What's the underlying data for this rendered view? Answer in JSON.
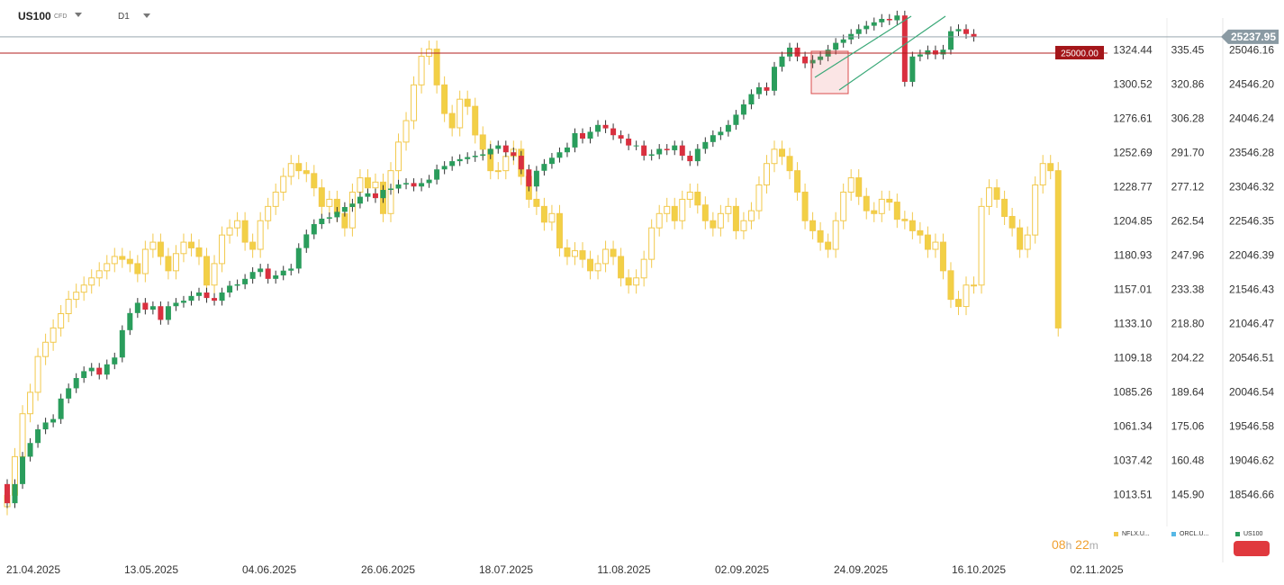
{
  "header": {
    "symbol": "US100",
    "symbol_type": "CFD",
    "timeframe": "D1",
    "symbol_dropdown_icon": "chevron-down-icon",
    "timeframe_dropdown_icon": "chevron-down-icon"
  },
  "chart_data": {
    "type": "candlestick",
    "x_ticks": [
      "21.04.2025",
      "13.05.2025",
      "04.06.2025",
      "26.06.2025",
      "18.07.2025",
      "11.08.2025",
      "02.09.2025",
      "24.09.2025",
      "16.10.2025",
      "02.11.2025"
    ],
    "axes": [
      {
        "series": "NFLX.U...",
        "ticks": [
          "1324.44",
          "1300.52",
          "1276.61",
          "1252.69",
          "1228.77",
          "1204.85",
          "1180.93",
          "1157.01",
          "1133.10",
          "1109.18",
          "1085.26",
          "1061.34",
          "1037.42",
          "1013.51"
        ]
      },
      {
        "series": "ORCL.U...",
        "ticks": [
          "335.45",
          "320.86",
          "306.28",
          "291.70",
          "277.12",
          "262.54",
          "247.96",
          "233.38",
          "218.80",
          "204.22",
          "189.64",
          "175.06",
          "160.48",
          "145.90"
        ]
      },
      {
        "series": "US100",
        "ticks": [
          "25046.16",
          "24546.20",
          "24046.24",
          "23546.28",
          "23046.32",
          "22546.35",
          "22046.39",
          "21546.43",
          "21046.47",
          "20546.51",
          "20046.54",
          "19546.58",
          "19046.62",
          "18546.66"
        ]
      }
    ],
    "current_price": "25237.95",
    "horizontal_level": "25000.00",
    "legend": [
      {
        "name": "NFLX.U...",
        "color": "#f2c94c"
      },
      {
        "name": "ORCL.U...",
        "color": "#56b8e6"
      },
      {
        "name": "US100",
        "color": "#2a9d5c"
      }
    ],
    "us100_closes": [
      18420,
      18700,
      19100,
      19300,
      19500,
      19600,
      19650,
      19950,
      20100,
      20250,
      20350,
      20400,
      20300,
      20450,
      20550,
      20950,
      21200,
      21350,
      21250,
      21300,
      21100,
      21300,
      21350,
      21380,
      21450,
      21500,
      21420,
      21380,
      21500,
      21600,
      21620,
      21700,
      21800,
      21850,
      21700,
      21750,
      21820,
      21850,
      22150,
      22350,
      22500,
      22580,
      22600,
      22680,
      22750,
      22800,
      22900,
      22950,
      22880,
      23000,
      23020,
      23080,
      23100,
      23050,
      23100,
      23150,
      23300,
      23350,
      23420,
      23450,
      23480,
      23500,
      23520,
      23600,
      23650,
      23550,
      23500,
      23300,
      23050,
      23280,
      23380,
      23470,
      23550,
      23620,
      23830,
      23750,
      23850,
      23950,
      23900,
      23800,
      23750,
      23650,
      23650,
      23500,
      23520,
      23600,
      23580,
      23650,
      23500,
      23420,
      23600,
      23700,
      23800,
      23850,
      23950,
      24100,
      24250,
      24400,
      24500,
      24450,
      24800,
      24950,
      25080,
      24950,
      24850,
      24900,
      24950,
      25050,
      25150,
      25200,
      25280,
      25350,
      25400,
      25450,
      25500,
      25480,
      25550,
      24580,
      24950,
      24980,
      25040,
      24980,
      25050,
      25320,
      25350,
      25280,
      25237.95
    ],
    "nflx_closes": [
      1013,
      1040,
      1070,
      1085,
      1110,
      1120,
      1130,
      1140,
      1150,
      1155,
      1160,
      1165,
      1170,
      1175,
      1180,
      1178,
      1175,
      1168,
      1185,
      1190,
      1180,
      1170,
      1182,
      1190,
      1186,
      1180,
      1160,
      1175,
      1195,
      1200,
      1205,
      1190,
      1185,
      1205,
      1215,
      1225,
      1236,
      1245,
      1240,
      1238,
      1228,
      1215,
      1220,
      1210,
      1200,
      1225,
      1235,
      1228,
      1232,
      1210,
      1240,
      1260,
      1275,
      1300,
      1320,
      1325,
      1300,
      1280,
      1270,
      1290,
      1285,
      1265,
      1255,
      1240,
      1240,
      1250,
      1255,
      1236,
      1220,
      1215,
      1204,
      1210,
      1186,
      1180,
      1184,
      1178,
      1170,
      1175,
      1185,
      1180,
      1165,
      1160,
      1165,
      1178,
      1200,
      1210,
      1215,
      1205,
      1220,
      1225,
      1216,
      1205,
      1200,
      1210,
      1215,
      1198,
      1205,
      1212,
      1230,
      1245,
      1255,
      1250,
      1240,
      1225,
      1205,
      1198,
      1190,
      1185,
      1205,
      1225,
      1235,
      1222,
      1212,
      1210,
      1220,
      1218,
      1206,
      1205,
      1198,
      1195,
      1185,
      1190,
      1170,
      1150,
      1145,
      1160,
      1160,
      1215,
      1228,
      1220,
      1208,
      1200,
      1185,
      1195,
      1230,
      1245,
      1240,
      1130
    ]
  },
  "footer": {
    "timer_hours": "08",
    "timer_h": "h",
    "timer_minutes": "22",
    "timer_m": "m"
  }
}
